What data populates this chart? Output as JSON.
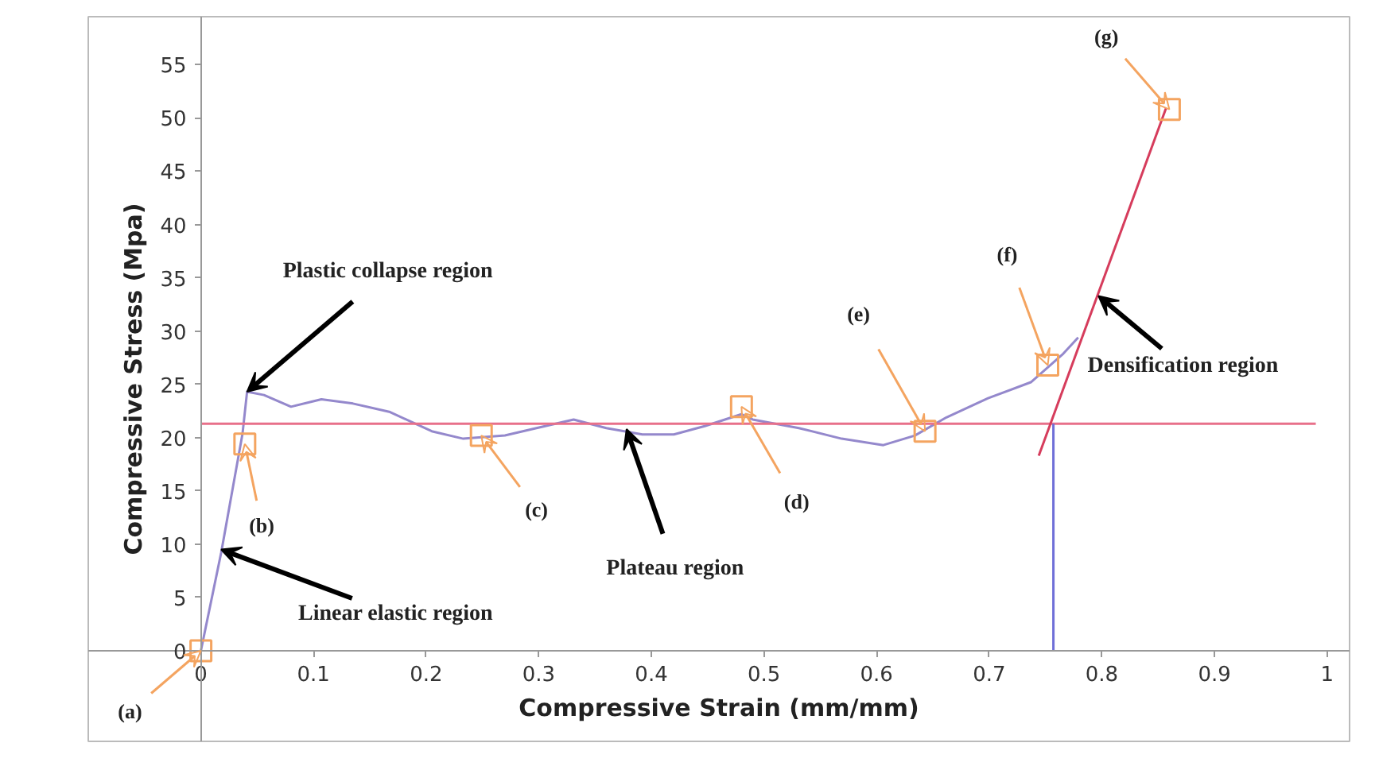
{
  "chart_data": {
    "type": "line",
    "xlabel": "Compressive Strain (mm/mm)",
    "ylabel": "Compressive Stress (Mpa)",
    "xlim": [
      -0.1,
      1.02
    ],
    "ylim": [
      -8.5,
      59.5
    ],
    "xticks": [
      0,
      0.1,
      0.2,
      0.3,
      0.4,
      0.5,
      0.6,
      0.7,
      0.8,
      0.9,
      1
    ],
    "yticks": [
      0,
      5,
      10,
      15,
      20,
      25,
      30,
      35,
      40,
      45,
      50,
      55
    ],
    "grid": false,
    "marker": "none",
    "line_style": "solid",
    "series": [
      {
        "color": "#9488cc",
        "x": [
          0,
          0.018,
          0.037,
          0.041,
          0.056,
          0.08,
          0.107,
          0.135,
          0.168,
          0.205,
          0.233,
          0.27,
          0.298,
          0.331,
          0.36,
          0.392,
          0.42,
          0.448,
          0.48,
          0.49,
          0.531,
          0.569,
          0.606,
          0.634,
          0.662,
          0.699,
          0.737,
          0.765,
          0.779
        ],
        "values": [
          0,
          9.2,
          20.4,
          24.3,
          24,
          22.9,
          23.6,
          23.2,
          22.4,
          20.6,
          19.9,
          20.2,
          20.9,
          21.7,
          20.9,
          20.3,
          20.3,
          21.1,
          22.2,
          21.7,
          20.9,
          19.9,
          19.3,
          20.2,
          21.9,
          23.7,
          25.2,
          27.8,
          29.4
        ]
      },
      {
        "color": "#e8708a",
        "x": [
          0,
          0.99
        ],
        "values": [
          21.3,
          21.3
        ]
      },
      {
        "color": "#d63c5c",
        "x": [
          0.744,
          0.857
        ],
        "values": [
          18.3,
          50.9
        ]
      },
      {
        "color": "#6f6fd8",
        "x": [
          0.757,
          0.757
        ],
        "values": [
          0,
          21.3
        ]
      },
      {
        "type": "scatter",
        "marker": "square",
        "color": "#f4a460",
        "x": [
          0,
          0.039,
          0.249,
          0.48,
          0.643,
          0.752,
          0.86
        ],
        "values": [
          0,
          19.4,
          20.2,
          22.9,
          20.6,
          26.8,
          50.8
        ]
      }
    ],
    "annotations": [
      {
        "text": "(a)",
        "x": 0,
        "y": 0
      },
      {
        "text": "(b)",
        "x": 0.039,
        "y": 19.4
      },
      {
        "text": "(c)",
        "x": 0.249,
        "y": 20.2
      },
      {
        "text": "(d)",
        "x": 0.48,
        "y": 22.9
      },
      {
        "text": "(e)",
        "x": 0.643,
        "y": 20.6
      },
      {
        "text": "(f)",
        "x": 0.752,
        "y": 26.8
      },
      {
        "text": "(g)",
        "x": 0.86,
        "y": 50.8
      },
      {
        "text": "Plastic collapse region",
        "x": 0.041,
        "y": 24.3
      },
      {
        "text": "Linear elastic region",
        "x": 0.018,
        "y": 9.5
      },
      {
        "text": "Plateau region",
        "x": 0.378,
        "y": 20.8
      },
      {
        "text": "Densification region",
        "x": 0.797,
        "y": 33.3
      }
    ]
  }
}
